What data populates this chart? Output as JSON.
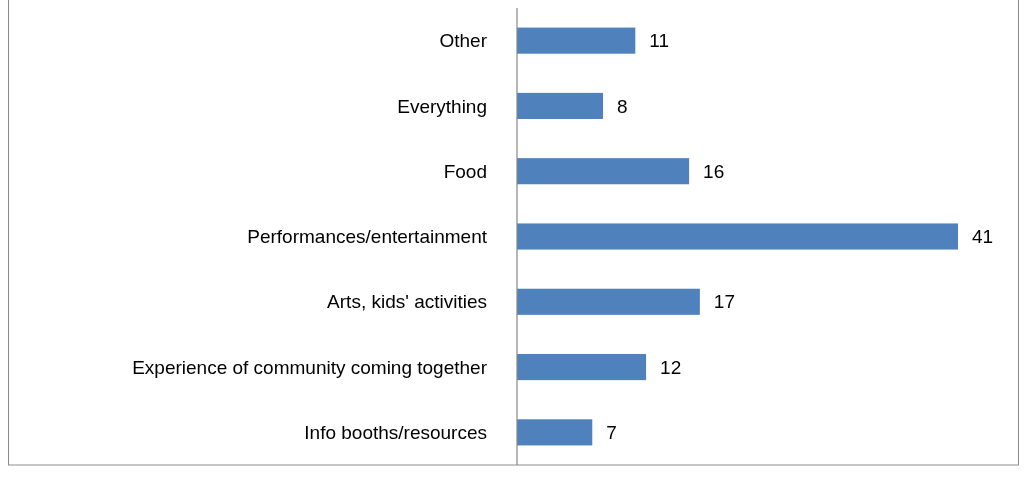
{
  "chart_data": {
    "type": "bar",
    "orientation": "horizontal",
    "categories": [
      "Other",
      "Everything",
      "Food",
      "Performances/entertainment",
      "Arts, kids' activities",
      "Experience of community coming together",
      "Info booths/resources"
    ],
    "values": [
      11,
      8,
      16,
      41,
      17,
      12,
      7
    ],
    "color": "#4f81bd",
    "data_labels": true
  }
}
